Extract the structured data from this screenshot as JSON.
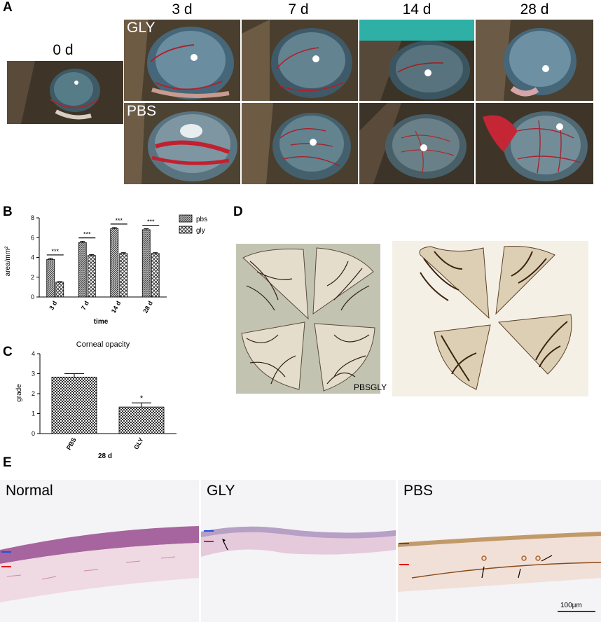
{
  "panels": {
    "A": "A",
    "B": "B",
    "C": "C",
    "D": "D",
    "E": "E"
  },
  "panelA": {
    "day0": "0 d",
    "days": [
      "3 d",
      "7 d",
      "14 d",
      "28 d"
    ],
    "row_labels": {
      "gly": "GLY",
      "pbs": "PBS"
    }
  },
  "chart_data": [
    {
      "type": "bar",
      "categories": [
        "3 d",
        "7 d",
        "14 d",
        "28 d"
      ],
      "xlabel": "time",
      "ylabel": "area/mm²",
      "ylim": [
        0,
        8
      ],
      "yticks": [
        0,
        2,
        4,
        6,
        8
      ],
      "legend_position": "top-right",
      "series": [
        {
          "name": "pbs",
          "values": [
            3.8,
            5.5,
            6.9,
            6.8
          ],
          "errors": [
            0.1,
            0.12,
            0.12,
            0.1
          ],
          "pattern": "dense-hatch"
        },
        {
          "name": "gly",
          "values": [
            1.5,
            4.2,
            4.4,
            4.4
          ],
          "errors": [
            0.05,
            0.08,
            0.08,
            0.08
          ],
          "pattern": "crosshatch"
        }
      ],
      "significance": [
        "***",
        "***",
        "***",
        "***"
      ]
    },
    {
      "type": "bar",
      "title": "Corneal opacity",
      "categories": [
        "PBS",
        "GLY"
      ],
      "values": [
        2.83,
        1.33
      ],
      "errors": [
        0.17,
        0.21
      ],
      "ylabel": "grade",
      "xlabel": "28 d",
      "ylim": [
        0,
        4
      ],
      "yticks": [
        0,
        1,
        2,
        3,
        4
      ],
      "significance": [
        "",
        "*"
      ]
    }
  ],
  "panelD": {
    "caption": "PBSGLY"
  },
  "panelE": {
    "labels": [
      "Normal",
      "GLY",
      "PBS"
    ],
    "scalebar": "100μm"
  },
  "colors": {
    "vessel": "#b0202a",
    "blue_arrow": "#2050e0",
    "red_arrow": "#e01818",
    "stain": "#4a2a14"
  }
}
